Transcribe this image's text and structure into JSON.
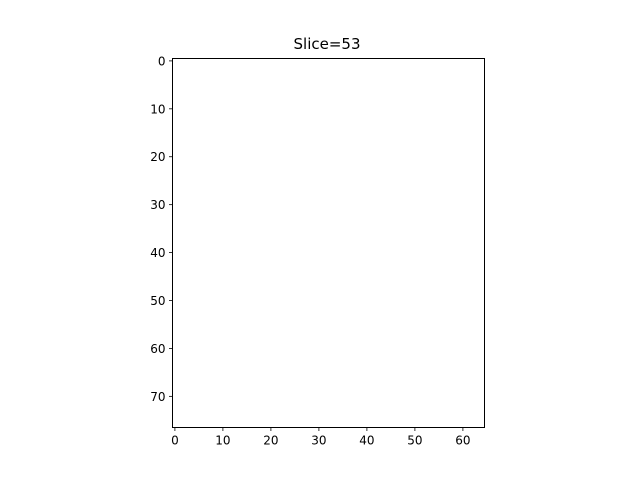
{
  "chart_data": {
    "type": "heatmap",
    "title": "Slice=53",
    "xlabel": "",
    "ylabel": "",
    "xlim": [
      -0.5,
      64.5
    ],
    "ylim": [
      76.5,
      -0.5
    ],
    "x_ticks": [
      0,
      10,
      20,
      30,
      40,
      50,
      60
    ],
    "y_ticks": [
      0,
      10,
      20,
      30,
      40,
      50,
      60,
      70
    ],
    "image_fill": "#ffffff",
    "grid": false,
    "legend": "none"
  }
}
